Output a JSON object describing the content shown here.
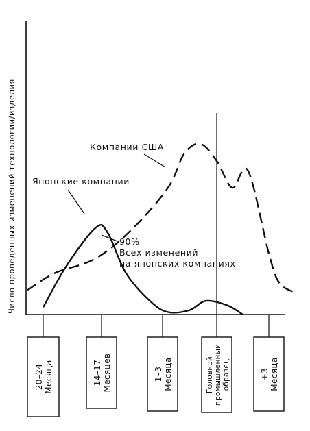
{
  "chart_data": {
    "type": "line",
    "ylabel": "Число проведенных изменений технологии/изделия",
    "x_stages": [
      "20–24 Месяца",
      "14–17 Месяцев",
      "1–3 Месяца",
      "Головной промышленный образец",
      "+3 Месяца"
    ],
    "series": [
      {
        "name": "Японские компании",
        "style": "solid",
        "color": "#111111",
        "points": [
          [
            0,
            0.15
          ],
          [
            0.4,
            1.0
          ],
          [
            0.9,
            1.78
          ],
          [
            1.1,
            1.68
          ],
          [
            1.4,
            0.85
          ],
          [
            1.8,
            0.27
          ],
          [
            2.1,
            0.05
          ],
          [
            2.5,
            0.09
          ],
          [
            2.8,
            0.28
          ],
          [
            3.2,
            0.19
          ],
          [
            3.5,
            0.0
          ]
        ]
      },
      {
        "name": "Компании США",
        "style": "dashed",
        "color": "#111111",
        "points": [
          [
            -0.3,
            0.5
          ],
          [
            0.2,
            0.85
          ],
          [
            0.9,
            1.15
          ],
          [
            1.5,
            1.75
          ],
          [
            2.1,
            2.6
          ],
          [
            2.4,
            3.3
          ],
          [
            2.7,
            3.5
          ],
          [
            3.0,
            3.15
          ],
          [
            3.3,
            2.6
          ],
          [
            3.6,
            2.95
          ],
          [
            4.0,
            1.25
          ],
          [
            4.2,
            0.65
          ],
          [
            4.5,
            0.45
          ]
        ]
      }
    ],
    "annotations": {
      "japan_label": "Японские компании",
      "us_label": "Компании США",
      "pct_value": "90%",
      "pct_line1": "Всех изменений",
      "pct_line2": "на японских компаниях"
    },
    "grid": false,
    "legend": "none"
  }
}
